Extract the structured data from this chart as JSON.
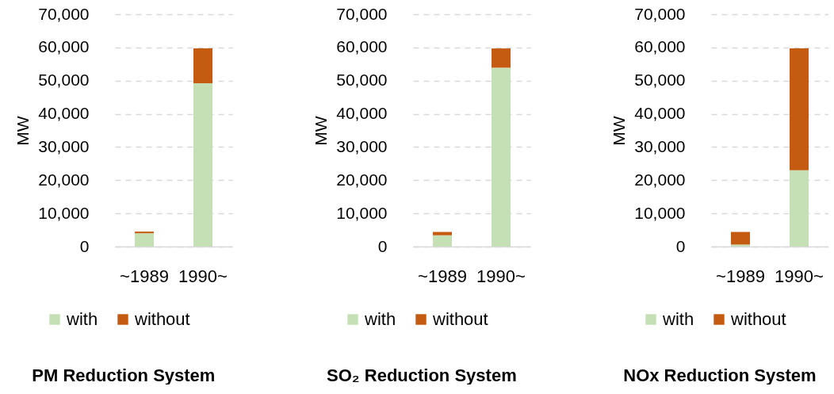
{
  "chart_data": [
    {
      "type": "bar",
      "title": "PM Reduction System",
      "ylabel": "MW",
      "categories": [
        "~1989",
        "1990~"
      ],
      "stacked": true,
      "series": [
        {
          "name": "with",
          "color": "#c5e0b4",
          "values": [
            4000,
            49200
          ]
        },
        {
          "name": "without",
          "color": "#c55a11",
          "values": [
            500,
            10500
          ]
        }
      ],
      "ylim": [
        0,
        70000
      ],
      "yticks": [
        0,
        {
          "value": 10000,
          "label": "10,000"
        },
        {
          "value": 20000,
          "label": "20,000"
        },
        {
          "value": 30000,
          "label": "30,000"
        },
        {
          "value": 40000,
          "label": "40,000"
        },
        {
          "value": 50000,
          "label": "50,000"
        },
        {
          "value": 60000,
          "label": "60,000"
        },
        {
          "value": 70000,
          "label": "70,000"
        }
      ],
      "grid": "y",
      "legend": "bottom"
    },
    {
      "type": "bar",
      "title": "SO₂ Reduction System",
      "ylabel": "MW",
      "categories": [
        "~1989",
        "1990~"
      ],
      "stacked": true,
      "series": [
        {
          "name": "with",
          "color": "#c5e0b4",
          "values": [
            3400,
            53900
          ]
        },
        {
          "name": "without",
          "color": "#c55a11",
          "values": [
            1000,
            5800
          ]
        }
      ],
      "ylim": [
        0,
        70000
      ],
      "yticks": [
        0,
        {
          "value": 10000,
          "label": "10,000"
        },
        {
          "value": 20000,
          "label": "20,000"
        },
        {
          "value": 30000,
          "label": "30,000"
        },
        {
          "value": 40000,
          "label": "40,000"
        },
        {
          "value": 50000,
          "label": "50,000"
        },
        {
          "value": 60000,
          "label": "60,000"
        },
        {
          "value": 70000,
          "label": "70,000"
        }
      ],
      "grid": "y",
      "legend": "bottom"
    },
    {
      "type": "bar",
      "title": "NOx Reduction System",
      "ylabel": "MW",
      "categories": [
        "~1989",
        "1990~"
      ],
      "stacked": true,
      "series": [
        {
          "name": "with",
          "color": "#c5e0b4",
          "values": [
            600,
            23000
          ]
        },
        {
          "name": "without",
          "color": "#c55a11",
          "values": [
            3800,
            36700
          ]
        }
      ],
      "ylim": [
        0,
        70000
      ],
      "yticks": [
        0,
        {
          "value": 10000,
          "label": "10,000"
        },
        {
          "value": 20000,
          "label": "20,000"
        },
        {
          "value": 30000,
          "label": "30,000"
        },
        {
          "value": 40000,
          "label": "40,000"
        },
        {
          "value": 50000,
          "label": "50,000"
        },
        {
          "value": 60000,
          "label": "60,000"
        },
        {
          "value": 70000,
          "label": "70,000"
        }
      ],
      "grid": "y",
      "legend": "bottom"
    }
  ]
}
